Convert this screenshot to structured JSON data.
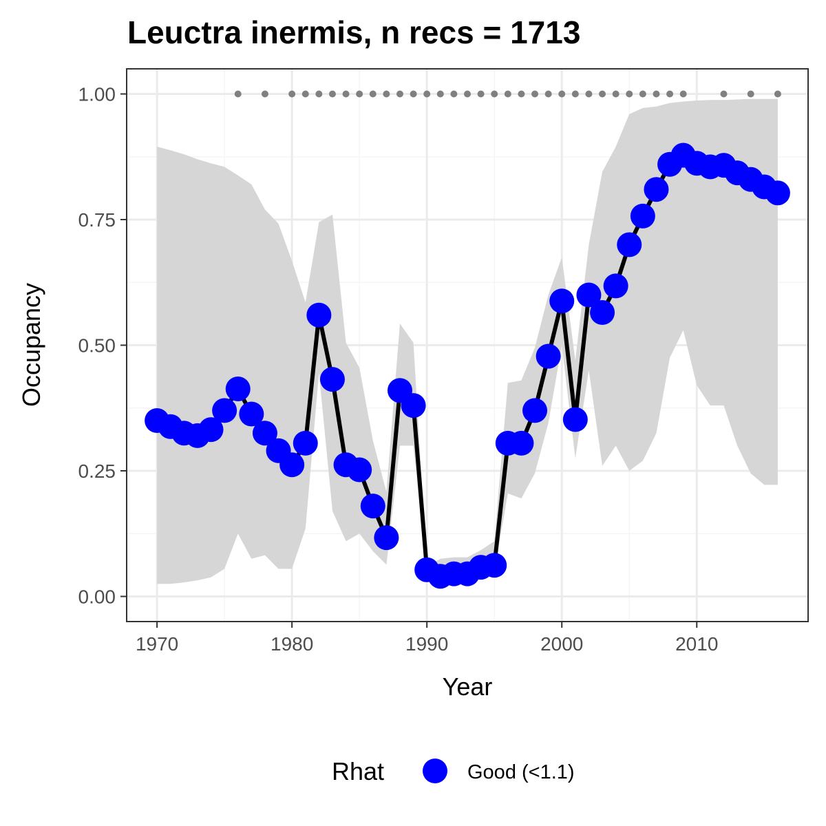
{
  "chart_data": {
    "type": "line",
    "title": "Leuctra inermis, n recs = 1713",
    "xlabel": "Year",
    "ylabel": "Occupancy",
    "xlim": [
      1967.75,
      2018.25
    ],
    "ylim": [
      -0.05,
      1.05
    ],
    "x_ticks": [
      1970,
      1980,
      1990,
      2000,
      2010
    ],
    "x_tick_labels": [
      "1970",
      "1980",
      "1990",
      "2000",
      "2010"
    ],
    "y_ticks": [
      0,
      0.25,
      0.5,
      0.75,
      1.0
    ],
    "y_tick_labels": [
      "0.00",
      "0.25",
      "0.50",
      "0.75",
      "1.00"
    ],
    "grid": true,
    "colors": {
      "point": "#0000ff",
      "line": "#000000",
      "ribbon": "#d6d6d6",
      "record_dots": "#808080",
      "grid_major": "#ebebeb",
      "grid_minor": "#f5f5f5",
      "panel_border": "#333333"
    },
    "series": [
      {
        "name": "Good (<1.1)",
        "x": [
          1970,
          1971,
          1972,
          1973,
          1974,
          1975,
          1976,
          1977,
          1978,
          1979,
          1980,
          1981,
          1982,
          1983,
          1984,
          1985,
          1986,
          1987,
          1988,
          1989,
          1990,
          1991,
          1992,
          1993,
          1994,
          1995,
          1996,
          1997,
          1998,
          1999,
          2000,
          2001,
          2002,
          2003,
          2004,
          2005,
          2006,
          2007,
          2008,
          2009,
          2010,
          2011,
          2012,
          2013,
          2014,
          2015,
          2016
        ],
        "y": [
          0.35,
          0.338,
          0.325,
          0.32,
          0.332,
          0.37,
          0.413,
          0.363,
          0.325,
          0.29,
          0.262,
          0.305,
          0.56,
          0.432,
          0.262,
          0.252,
          0.18,
          0.117,
          0.41,
          0.38,
          0.053,
          0.04,
          0.045,
          0.045,
          0.058,
          0.062,
          0.305,
          0.305,
          0.37,
          0.478,
          0.588,
          0.352,
          0.6,
          0.565,
          0.618,
          0.7,
          0.757,
          0.81,
          0.86,
          0.878,
          0.862,
          0.855,
          0.858,
          0.843,
          0.83,
          0.815,
          0.803
        ],
        "lower": [
          0.025,
          0.025,
          0.028,
          0.032,
          0.038,
          0.055,
          0.125,
          0.075,
          0.082,
          0.055,
          0.055,
          0.135,
          0.445,
          0.17,
          0.11,
          0.125,
          0.09,
          0.063,
          0.3,
          0.3,
          0.045,
          0.03,
          0.032,
          0.035,
          0.045,
          0.05,
          0.205,
          0.195,
          0.245,
          0.345,
          0.5,
          0.275,
          0.45,
          0.26,
          0.3,
          0.25,
          0.27,
          0.325,
          0.475,
          0.53,
          0.42,
          0.38,
          0.38,
          0.3,
          0.245,
          0.222,
          0.222
        ],
        "upper": [
          0.895,
          0.888,
          0.88,
          0.87,
          0.862,
          0.855,
          0.838,
          0.82,
          0.77,
          0.742,
          0.668,
          0.585,
          0.745,
          0.76,
          0.505,
          0.455,
          0.31,
          0.208,
          0.543,
          0.505,
          0.06,
          0.075,
          0.078,
          0.078,
          0.092,
          0.11,
          0.425,
          0.43,
          0.495,
          0.6,
          0.675,
          0.47,
          0.7,
          0.845,
          0.895,
          0.96,
          0.972,
          0.975,
          0.982,
          0.985,
          0.987,
          0.988,
          0.988,
          0.989,
          0.99,
          0.99,
          0.99
        ]
      }
    ],
    "record_years": [
      1976,
      1978,
      1980,
      1981,
      1982,
      1983,
      1984,
      1985,
      1986,
      1987,
      1988,
      1989,
      1990,
      1991,
      1992,
      1993,
      1994,
      1995,
      1996,
      1997,
      1998,
      1999,
      2000,
      2001,
      2002,
      2003,
      2004,
      2005,
      2006,
      2007,
      2008,
      2009,
      2012,
      2014,
      2016
    ],
    "record_y": 1.0,
    "legend": {
      "title": "Rhat",
      "placement": "bottom",
      "entries": [
        {
          "label": "Good (<1.1)",
          "color": "#0000ff"
        }
      ]
    }
  }
}
